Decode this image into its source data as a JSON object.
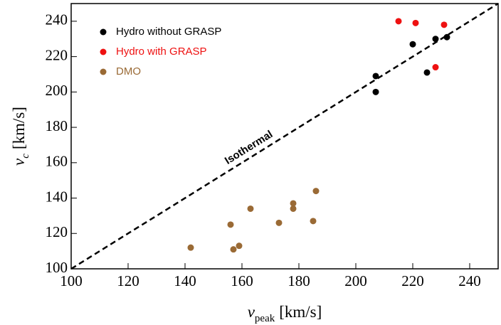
{
  "chart_data": {
    "type": "scatter",
    "x_label": {
      "symbol": "v",
      "subscript": "peak",
      "unit": "[km/s]"
    },
    "y_label": {
      "symbol": "v",
      "subscript": "c",
      "unit": "[km/s]"
    },
    "annotation": "Isothermal",
    "xlim": [
      100,
      250
    ],
    "ylim": [
      100,
      250
    ],
    "xticks": [
      100,
      120,
      140,
      160,
      180,
      200,
      220,
      240
    ],
    "yticks": [
      100,
      120,
      140,
      160,
      180,
      200,
      220,
      240
    ],
    "series": [
      {
        "name": "Hydro without GRASP",
        "color": "#000000",
        "x": [
          207,
          207,
          220,
          225,
          228,
          232
        ],
        "values": [
          209,
          200,
          227,
          211,
          230,
          231
        ]
      },
      {
        "name": "Hydro with GRASP",
        "color": "#ee1111",
        "x": [
          215,
          221,
          231,
          228
        ],
        "values": [
          240,
          239,
          238,
          214
        ]
      },
      {
        "name": "DMO",
        "color": "#9a6a35",
        "x": [
          142,
          156,
          157,
          159,
          163,
          173,
          178,
          178,
          185,
          186
        ],
        "values": [
          112,
          125,
          111,
          113,
          134,
          126,
          134,
          137,
          127,
          144
        ]
      }
    ]
  }
}
